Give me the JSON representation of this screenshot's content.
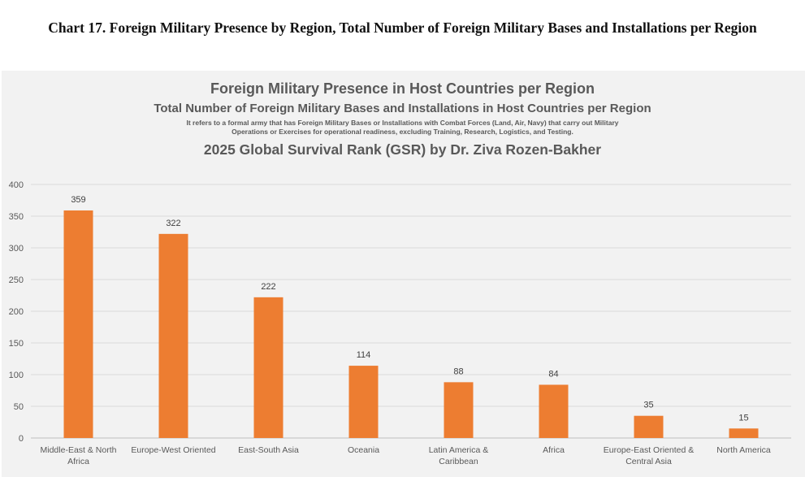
{
  "document_title": "Chart 17. Foreign Military Presence by Region, Total Number of Foreign Military Bases and Installations per Region",
  "chart_data": {
    "type": "bar",
    "title": "Foreign Military Presence in Host Countries per Region",
    "subtitle": "Total Number of Foreign Military Bases and Installations in Host Countries per Region",
    "note": "It refers to a formal army that has Foreign Military Bases or Installations with Combat Forces (Land, Air, Navy) that carry out Military Operations or Exercises for operational readiness,  excluding Training, Research, Logistics, and Testing.",
    "source_title": "2025 Global Survival Rank (GSR) by Dr. Ziva Rozen-Bakher",
    "categories": [
      "Middle-East & North Africa",
      "Europe-West Oriented",
      "East-South Asia",
      "Oceania",
      "Latin America & Caribbean",
      "Africa",
      "Europe-East Oriented & Central Asia",
      "North America"
    ],
    "values": [
      359,
      322,
      222,
      114,
      88,
      84,
      35,
      15
    ],
    "data_labels": [
      "359",
      "322",
      "222",
      "114",
      "88",
      "84",
      "35",
      "15"
    ],
    "ylim": [
      0,
      400
    ],
    "yticks": [
      "0",
      "50",
      "100",
      "150",
      "200",
      "250",
      "300",
      "350",
      "400"
    ],
    "xlabel": "",
    "ylabel": "",
    "bar_color": "#ed7d31",
    "grid": true
  }
}
